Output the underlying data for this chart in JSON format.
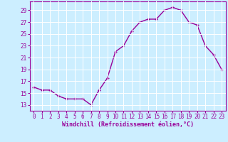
{
  "x": [
    0,
    1,
    2,
    3,
    4,
    5,
    6,
    7,
    8,
    9,
    10,
    11,
    12,
    13,
    14,
    15,
    16,
    17,
    18,
    19,
    20,
    21,
    22,
    23
  ],
  "y": [
    16,
    15.5,
    15.5,
    14.5,
    14,
    14,
    14,
    13,
    15.5,
    17.5,
    22,
    23,
    25.5,
    27,
    27.5,
    27.5,
    29,
    29.5,
    29,
    27,
    26.5,
    23,
    21.5,
    19
  ],
  "line_color": "#990099",
  "marker": "+",
  "bg_color": "#cceeff",
  "grid_color": "#ffffff",
  "xlabel": "Windchill (Refroidissement éolien,°C)",
  "xlabel_color": "#990099",
  "yticks": [
    13,
    15,
    17,
    19,
    21,
    23,
    25,
    27,
    29
  ],
  "xticks": [
    0,
    1,
    2,
    3,
    4,
    5,
    6,
    7,
    8,
    9,
    10,
    11,
    12,
    13,
    14,
    15,
    16,
    17,
    18,
    19,
    20,
    21,
    22,
    23
  ],
  "ylim": [
    12.0,
    30.5
  ],
  "xlim": [
    -0.5,
    23.5
  ],
  "tick_color": "#990099",
  "tick_fontsize": 5.5,
  "xlabel_fontsize": 6.0,
  "linewidth": 1.0,
  "markersize": 3.5,
  "markeredgewidth": 1.0
}
